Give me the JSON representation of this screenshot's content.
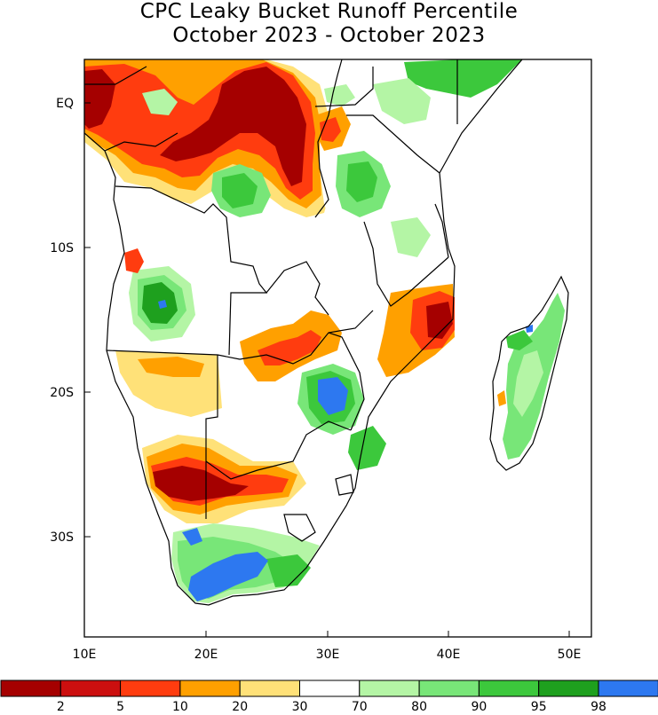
{
  "title": {
    "line1": "CPC Leaky Bucket Runoff Percentile",
    "line2": "October 2023 - October 2023"
  },
  "axes": {
    "x_ticks": [
      "10E",
      "20E",
      "30E",
      "40E",
      "50E"
    ],
    "y_ticks": [
      "EQ",
      "10S",
      "20S",
      "30S"
    ]
  },
  "legend": {
    "bins": [
      {
        "color": "#a50000"
      },
      {
        "color": "#cc0f0f"
      },
      {
        "color": "#ff3c0f"
      },
      {
        "color": "#ffa000"
      },
      {
        "color": "#ffe178"
      },
      {
        "color": "#ffffff"
      },
      {
        "color": "#b4f5a5"
      },
      {
        "color": "#78e678"
      },
      {
        "color": "#3cc83c"
      },
      {
        "color": "#1ea01e"
      },
      {
        "color": "#2d78f0"
      }
    ],
    "labels": [
      "2",
      "5",
      "10",
      "20",
      "30",
      "70",
      "80",
      "90",
      "95",
      "98"
    ]
  },
  "colors": {
    "frame": "#000000",
    "background": "#ffffff"
  }
}
